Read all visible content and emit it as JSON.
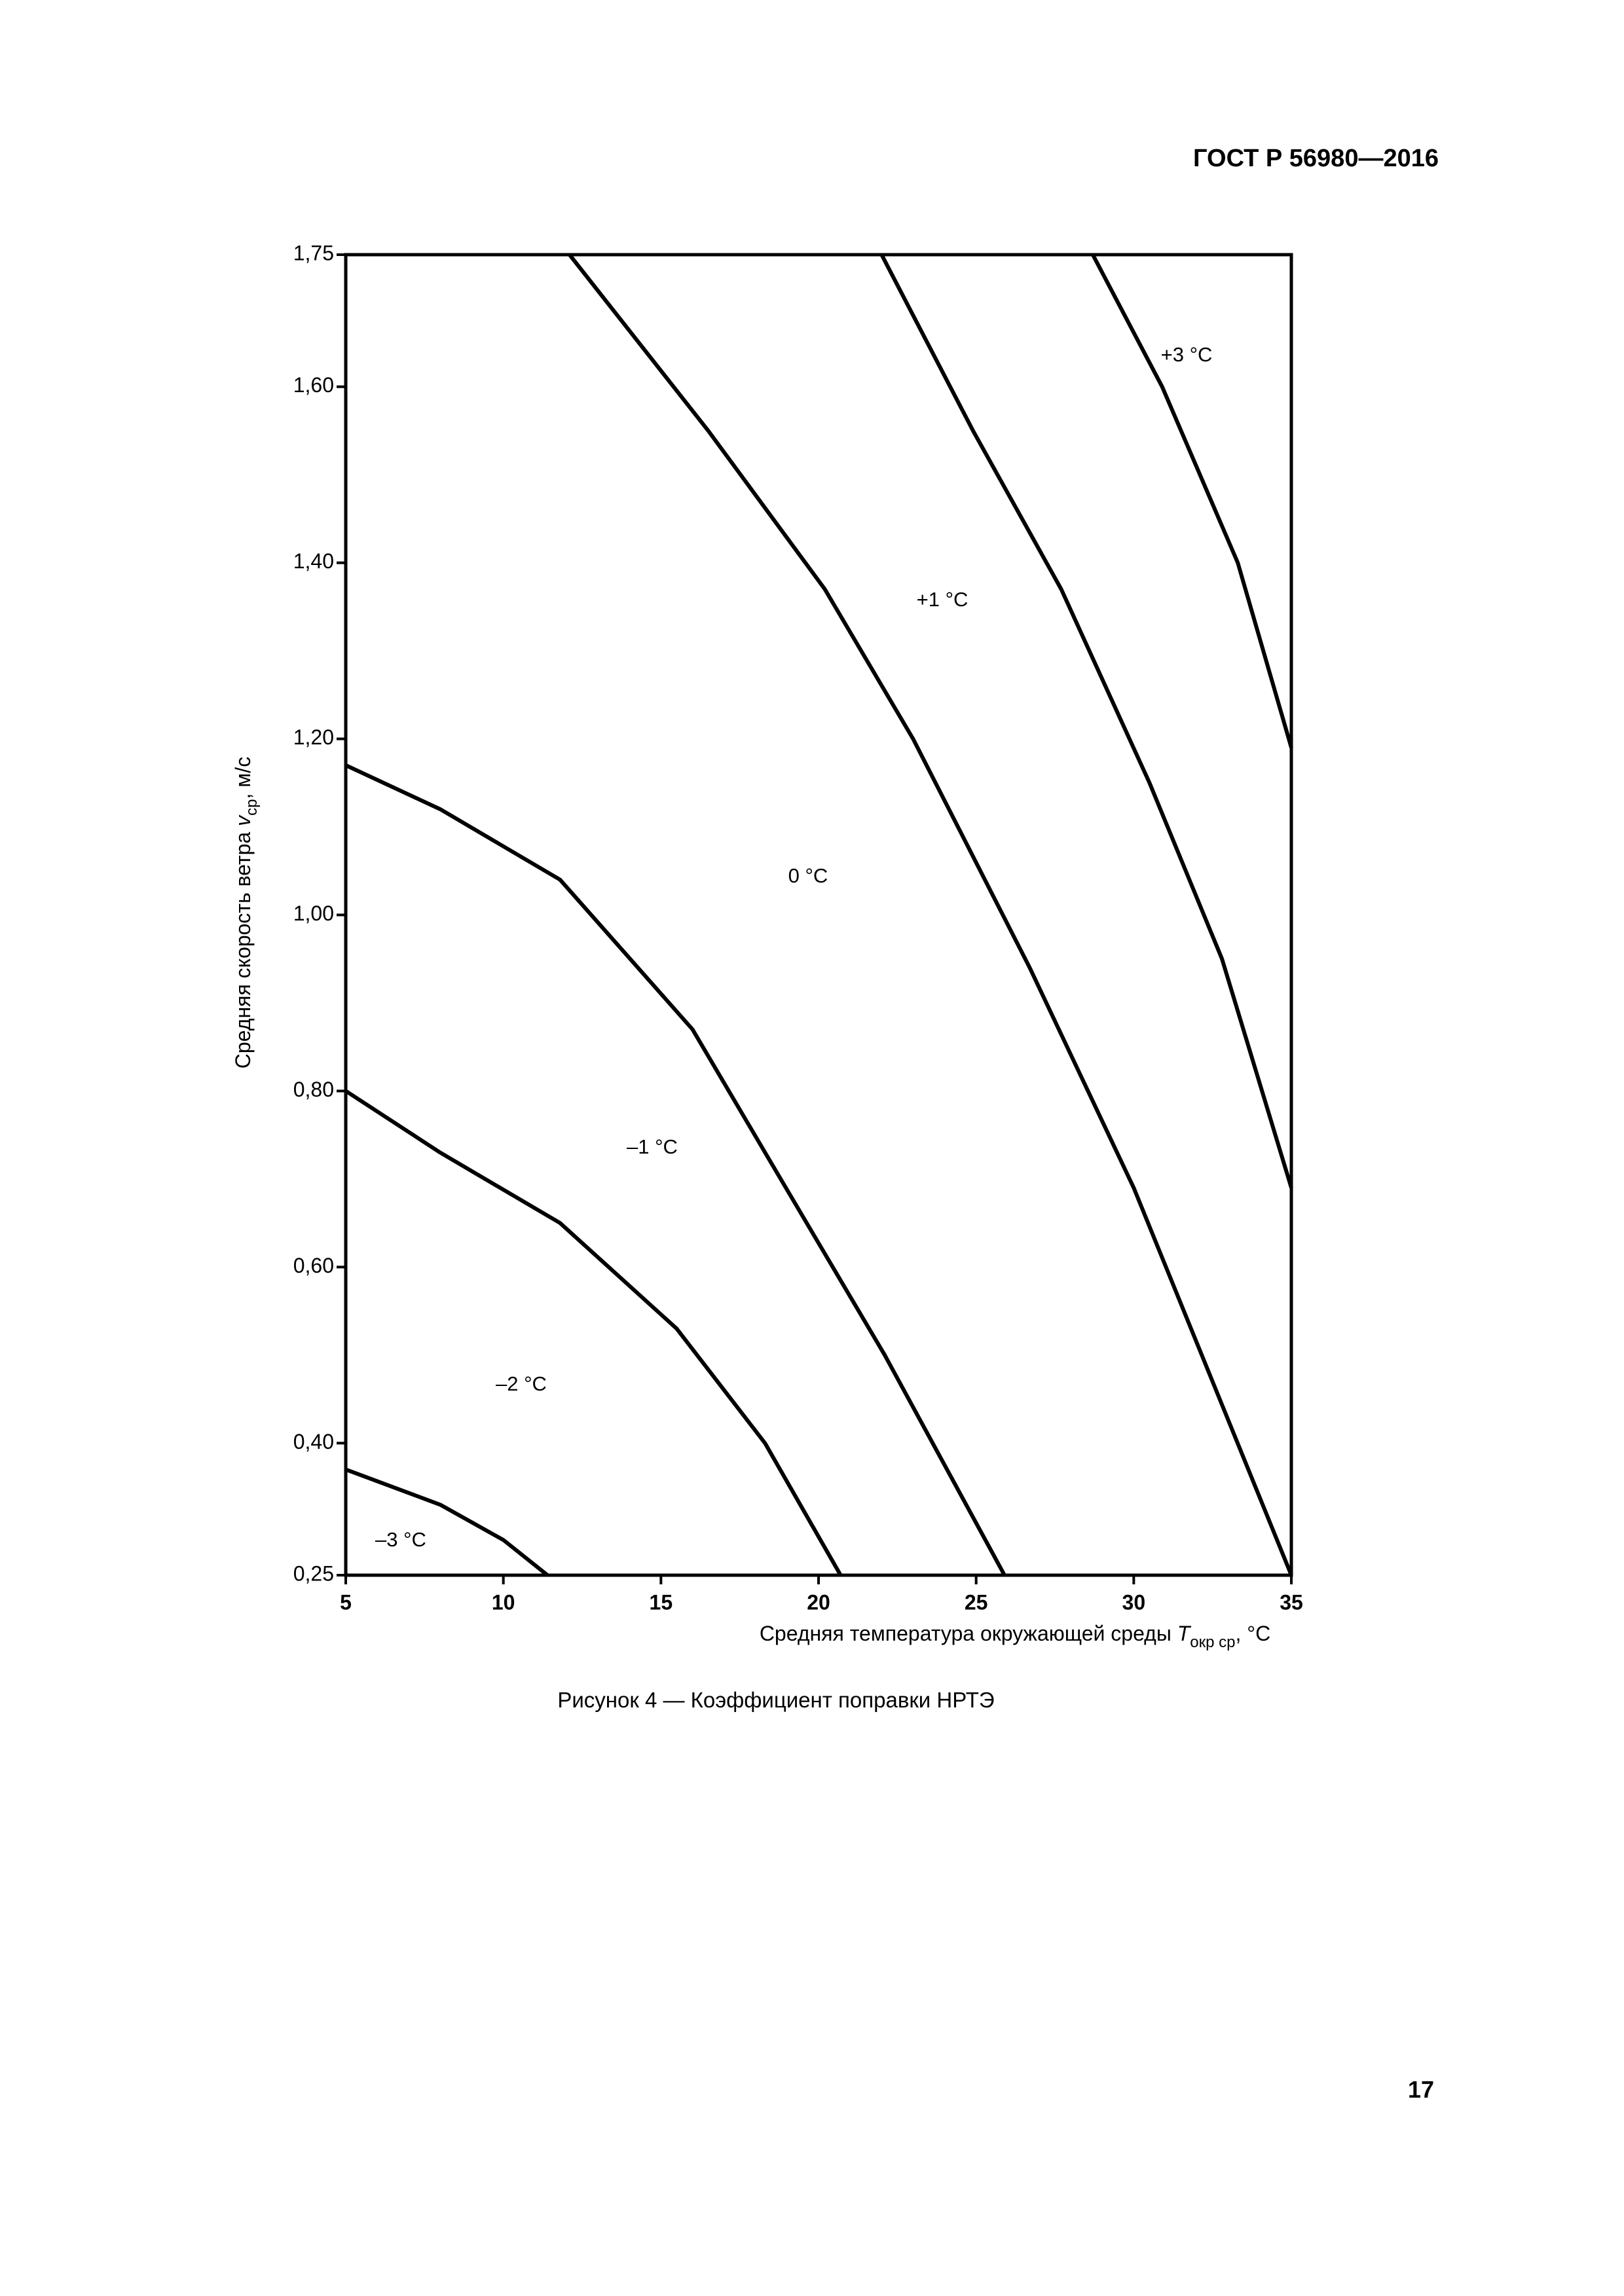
{
  "header": {
    "title": "ГОСТ Р 56980—2016"
  },
  "chart_data": {
    "type": "line",
    "xlabel": {
      "text": "Средняя температура окружающей среды ",
      "symbol": "T",
      "subscript": "окр ср",
      "unit": ", °C"
    },
    "ylabel": {
      "text": "Средняя скорость ветра ",
      "symbol": "v",
      "subscript": "ср",
      "unit": ", м/с"
    },
    "xlim": [
      5,
      35
    ],
    "xticks": [
      5,
      10,
      15,
      20,
      25,
      30,
      35
    ],
    "ylim": [
      0.25,
      1.75
    ],
    "yticks": [
      {
        "value": 0.25,
        "label": "0,25"
      },
      {
        "value": 0.4,
        "label": "0,40"
      },
      {
        "value": 0.6,
        "label": "0,60"
      },
      {
        "value": 0.8,
        "label": "0,80"
      },
      {
        "value": 1.0,
        "label": "1,00"
      },
      {
        "value": 1.2,
        "label": "1,20"
      },
      {
        "value": 1.4,
        "label": "1,40"
      },
      {
        "value": 1.6,
        "label": "1,60"
      },
      {
        "value": 1.75,
        "label": "1,75"
      }
    ],
    "color": "#000000",
    "series": [
      {
        "x": [
          5,
          8,
          10,
          11.4
        ],
        "values": [
          0.37,
          0.33,
          0.29,
          0.25
        ]
      },
      {
        "x": [
          5,
          8,
          11.8,
          15.5,
          18.3,
          20.7
        ],
        "values": [
          0.8,
          0.73,
          0.65,
          0.53,
          0.4,
          0.25
        ]
      },
      {
        "x": [
          5,
          8,
          11.8,
          16,
          18.8,
          22.1,
          25.9
        ],
        "values": [
          1.17,
          1.12,
          1.04,
          0.87,
          0.7,
          0.5,
          0.25
        ]
      },
      {
        "x": [
          12.1,
          16.5,
          20.2,
          23,
          26.7,
          30,
          35
        ],
        "values": [
          1.75,
          1.55,
          1.37,
          1.2,
          0.94,
          0.69,
          0.25
        ]
      },
      {
        "x": [
          22,
          24.9,
          27.7,
          30.5,
          32.8,
          35
        ],
        "values": [
          1.75,
          1.55,
          1.37,
          1.15,
          0.95,
          0.69
        ]
      },
      {
        "x": [
          28.7,
          30.9,
          33.3,
          35
        ],
        "values": [
          1.75,
          1.6,
          1.4,
          1.19
        ]
      }
    ],
    "annotations": [
      "–3 °C",
      "–2 °C",
      "–1 °C",
      "0 °C",
      "+1 °C",
      "+3 °C"
    ]
  },
  "caption": "Рисунок 4 — Коэффициент поправки НРТЭ",
  "page_number": "17"
}
